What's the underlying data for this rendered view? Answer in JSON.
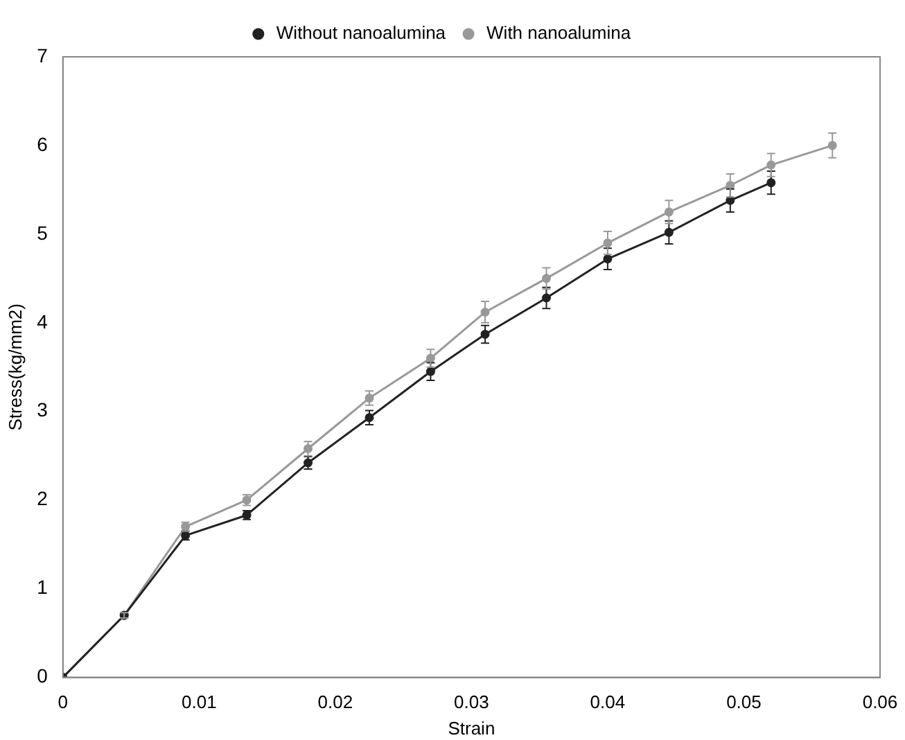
{
  "chart_data": {
    "type": "line",
    "xlabel": "Strain",
    "ylabel": "Stress(kg/mm2)",
    "xlim": [
      0,
      0.06
    ],
    "xticks": [
      0,
      0.01,
      0.02,
      0.03,
      0.04,
      0.05,
      0.06
    ],
    "ylim": [
      0,
      7
    ],
    "yticks": [
      0,
      1,
      2,
      3,
      4,
      5,
      6,
      7
    ],
    "grid": false,
    "legend": "top",
    "marker": "circle",
    "series": [
      {
        "name": "Without nanoalumina",
        "color": "#222222",
        "x": [
          0,
          0.0045,
          0.009,
          0.0135,
          0.018,
          0.0225,
          0.027,
          0.031,
          0.0355,
          0.04,
          0.0445,
          0.049,
          0.052
        ],
        "values": [
          0,
          0.7,
          1.6,
          1.83,
          2.42,
          2.93,
          3.45,
          3.87,
          4.28,
          4.72,
          5.02,
          5.38,
          5.58
        ],
        "errors": [
          null,
          0.03,
          0.05,
          0.05,
          0.07,
          0.08,
          0.1,
          0.1,
          0.12,
          0.12,
          0.13,
          0.13,
          0.13
        ]
      },
      {
        "name": "With nanoalumina",
        "color": "#999999",
        "x": [
          0,
          0.0045,
          0.009,
          0.0135,
          0.018,
          0.0225,
          0.027,
          0.031,
          0.0355,
          0.04,
          0.0445,
          0.049,
          0.052,
          0.0565
        ],
        "values": [
          0,
          0.7,
          1.7,
          2.0,
          2.58,
          3.15,
          3.6,
          4.12,
          4.5,
          4.9,
          5.25,
          5.55,
          5.78,
          6.0
        ],
        "errors": [
          null,
          0.03,
          0.05,
          0.06,
          0.08,
          0.08,
          0.1,
          0.12,
          0.12,
          0.13,
          0.13,
          0.13,
          0.13,
          0.14
        ]
      }
    ]
  }
}
